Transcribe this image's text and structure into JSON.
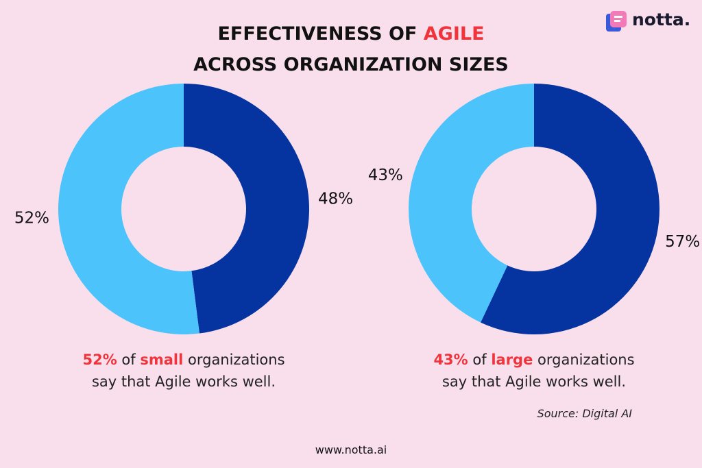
{
  "title": {
    "line1": "EFFECTIVENESS OF",
    "highlight": "AGILE",
    "line2": "ACROSS ORGANIZATION SIZES"
  },
  "logo": "notta.",
  "chart_data": [
    {
      "type": "pie",
      "values": [
        48,
        52
      ],
      "value_labels": [
        "48%",
        "52%"
      ],
      "colors": [
        "#0533a0",
        "#4dc3fb"
      ],
      "caption": {
        "pre": "of",
        "highlight": "small",
        "post": "organizations",
        "line2": "say that Agile works well."
      }
    },
    {
      "type": "pie",
      "values": [
        57,
        43
      ],
      "value_labels": [
        "57%",
        "43%"
      ],
      "colors": [
        "#0533a0",
        "#4dc3fb"
      ],
      "caption": {
        "pre": "of",
        "highlight": "large",
        "post": "organizations",
        "line2": "say that Agile works well."
      }
    }
  ],
  "source": "Source: Digital AI",
  "footer": "www.notta.ai"
}
